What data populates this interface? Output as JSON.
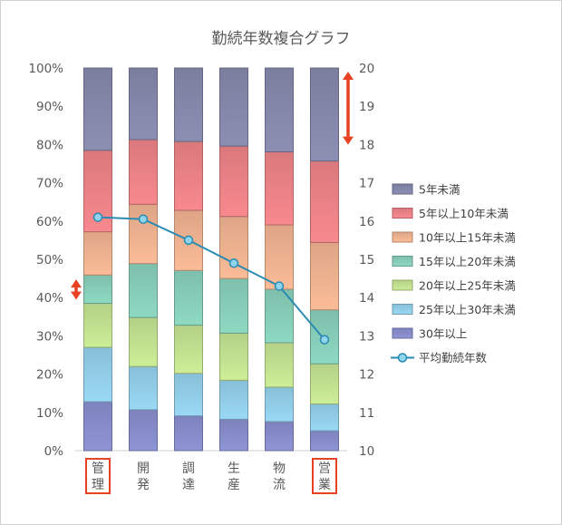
{
  "chart_data": {
    "type": "bar",
    "stacked": true,
    "title": "勤続年数複合グラフ",
    "categories": [
      "管理",
      "開発",
      "調達",
      "生産",
      "物流",
      "営業"
    ],
    "highlighted_categories": [
      "管理",
      "営業"
    ],
    "y_left": {
      "lim": [
        0,
        100
      ],
      "ticks": [
        "0%",
        "10%",
        "20%",
        "30%",
        "40%",
        "50%",
        "60%",
        "70%",
        "80%",
        "90%",
        "100%"
      ]
    },
    "y_right": {
      "lim": [
        10,
        20
      ],
      "ticks": [
        "10",
        "11",
        "12",
        "13",
        "14",
        "15",
        "16",
        "17",
        "18",
        "19",
        "20"
      ]
    },
    "grid": false,
    "legend_position": "right",
    "series": [
      {
        "name": "30年以上",
        "color": "#8f94d6",
        "values": [
          12.8,
          10.7,
          9.1,
          8.2,
          7.6,
          5.2
        ]
      },
      {
        "name": "25年以上30年未満",
        "color": "#9ad9f5",
        "values": [
          14.2,
          11.3,
          11.1,
          10.2,
          9.0,
          7.0
        ]
      },
      {
        "name": "20年以上25年未満",
        "color": "#cdee98",
        "values": [
          11.5,
          12.8,
          12.6,
          12.3,
          11.6,
          10.5
        ]
      },
      {
        "name": "15年以上20年未満",
        "color": "#8ed9c2",
        "values": [
          7.4,
          14.1,
          14.3,
          14.3,
          14.0,
          14.1
        ]
      },
      {
        "name": "10年以上15年未満",
        "color": "#fbbc98",
        "values": [
          11.3,
          15.5,
          15.7,
          16.2,
          16.8,
          17.6
        ]
      },
      {
        "name": "5年以上10年未満",
        "color": "#f8898e",
        "values": [
          21.3,
          16.9,
          18.0,
          18.4,
          19.1,
          21.3
        ]
      },
      {
        "name": "5年未満",
        "color": "#8c8fb3",
        "values": [
          21.5,
          18.7,
          19.2,
          20.4,
          21.9,
          24.3
        ]
      }
    ],
    "line_series": {
      "name": "平均勤続年数",
      "axis": "right",
      "color": "#2a8bb2",
      "values": [
        16.1,
        16.05,
        15.5,
        14.9,
        14.3,
        12.9
      ]
    },
    "annotations": [
      {
        "type": "double-arrow",
        "color": "#e84223",
        "axis": "left",
        "from": 38.5,
        "to": 45.7,
        "side": "left"
      },
      {
        "type": "double-arrow",
        "color": "#e84223",
        "axis": "right",
        "from": 17.9,
        "to": 20.0,
        "side": "right"
      }
    ],
    "legend_order": [
      "5年未満",
      "5年以上10年未満",
      "10年以上15年未満",
      "15年以上20年未満",
      "20年以上25年未満",
      "25年以上30年未満",
      "30年以上",
      "平均勤続年数"
    ]
  }
}
